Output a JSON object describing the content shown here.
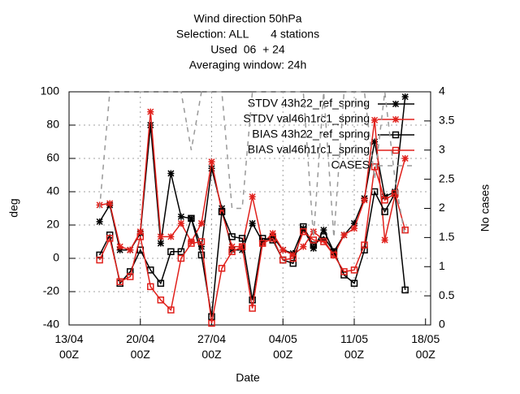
{
  "chart_data": {
    "type": "line",
    "title": [
      "Wind direction 50hPa",
      "Selection: ALL       4 stations",
      "Used  06  + 24",
      "Averaging window: 24h"
    ],
    "xlabel": "Date",
    "ylabel": "deg",
    "y2label": "No cases",
    "x": [
      "16/04 00Z",
      "17/04 00Z",
      "18/04 00Z",
      "19/04 00Z",
      "20/04 00Z",
      "21/04 00Z",
      "22/04 00Z",
      "23/04 00Z",
      "24/04 00Z",
      "25/04 00Z",
      "26/04 00Z",
      "27/04 00Z",
      "28/04 00Z",
      "29/04 00Z",
      "30/04 00Z",
      "01/05 00Z",
      "02/05 00Z",
      "03/05 00Z",
      "04/05 00Z",
      "05/05 00Z",
      "06/05 00Z",
      "07/05 00Z",
      "08/05 00Z",
      "09/05 00Z",
      "10/05 00Z",
      "11/05 00Z",
      "12/05 00Z",
      "13/05 00Z",
      "14/05 00Z",
      "15/05 00Z",
      "16/05 00Z"
    ],
    "series": [
      {
        "name": "STDV 43h22_ref_spring",
        "color": "#000000",
        "marker": "asterisk",
        "values": [
          22,
          32,
          5,
          5,
          15,
          80,
          9,
          51,
          25,
          24,
          7,
          54,
          30,
          5,
          5,
          21,
          10,
          13,
          5,
          3,
          18,
          6,
          17,
          4,
          14,
          21,
          36,
          70,
          37,
          40,
          97
        ]
      },
      {
        "name": "STDV val46h1rc1_spring",
        "color": "#e0201b",
        "marker": "asterisk",
        "values": [
          32,
          33,
          7,
          5,
          16,
          88,
          13,
          13,
          21,
          10,
          21,
          58,
          28,
          7,
          7,
          37,
          9,
          15,
          5,
          2,
          7,
          16,
          11,
          2,
          14,
          18,
          35,
          83,
          11,
          38,
          60
        ]
      },
      {
        "name": "BIAS 43h22_ref_spring",
        "color": "#000000",
        "marker": "square",
        "values": [
          2,
          14,
          -15,
          -8,
          5,
          -7,
          -15,
          4,
          4,
          24,
          2,
          -35,
          28,
          13,
          12,
          -25,
          12,
          11,
          -1,
          -3,
          19,
          8,
          13,
          4,
          -10,
          -15,
          5,
          40,
          28,
          39,
          -19
        ]
      },
      {
        "name": "BIAS val46h1rc1_spring",
        "color": "#e0201b",
        "marker": "square",
        "values": [
          -1,
          12,
          -14,
          -11,
          13,
          -17,
          -25,
          -31,
          0,
          9,
          10,
          -39,
          -6,
          4,
          7,
          -30,
          9,
          12,
          -1,
          0,
          16,
          11,
          10,
          2,
          -8,
          -7,
          8,
          55,
          35,
          39,
          17
        ]
      },
      {
        "name": "CASES",
        "color": "#999999",
        "marker": "none",
        "dashed": true,
        "axis": "y2",
        "values": [
          2,
          4,
          4,
          4,
          4,
          4,
          4,
          4,
          4,
          3,
          4,
          4,
          4,
          2,
          2,
          4,
          4,
          4,
          4,
          4,
          4,
          1.5,
          4,
          1.5,
          4,
          4,
          4,
          2.5,
          4,
          2.5,
          1.5
        ]
      }
    ],
    "xlim": [
      "13/04 00Z",
      "18/05 12Z"
    ],
    "xticks": [
      "13/04 00Z",
      "20/04 00Z",
      "27/04 00Z",
      "04/05 00Z",
      "11/05 00Z",
      "18/05 00Z"
    ],
    "ylim": [
      -40,
      100
    ],
    "yticks": [
      -40,
      -20,
      0,
      20,
      40,
      60,
      80,
      100
    ],
    "y2lim": [
      0,
      4
    ],
    "y2ticks": [
      0,
      0.5,
      1,
      1.5,
      2,
      2.5,
      3,
      3.5,
      4
    ],
    "grid": true,
    "legend": "top-right"
  }
}
